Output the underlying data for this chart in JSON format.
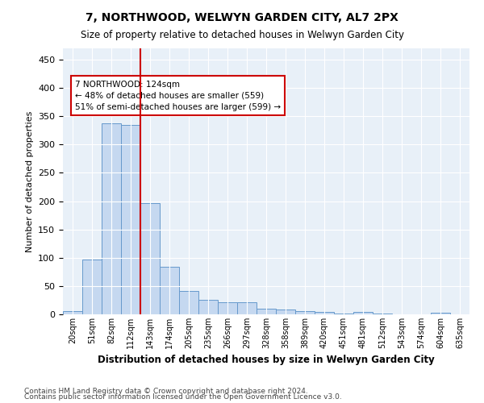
{
  "title": "7, NORTHWOOD, WELWYN GARDEN CITY, AL7 2PX",
  "subtitle": "Size of property relative to detached houses in Welwyn Garden City",
  "xlabel": "Distribution of detached houses by size in Welwyn Garden City",
  "ylabel": "Number of detached properties",
  "bar_labels": [
    "20sqm",
    "51sqm",
    "82sqm",
    "112sqm",
    "143sqm",
    "174sqm",
    "205sqm",
    "235sqm",
    "266sqm",
    "297sqm",
    "328sqm",
    "358sqm",
    "389sqm",
    "420sqm",
    "451sqm",
    "481sqm",
    "512sqm",
    "543sqm",
    "574sqm",
    "604sqm",
    "635sqm"
  ],
  "bar_values": [
    5,
    97,
    338,
    335,
    197,
    84,
    42,
    25,
    22,
    21,
    10,
    8,
    5,
    4,
    2,
    4,
    1,
    0,
    0,
    3,
    0
  ],
  "bar_color": "#c5d8f0",
  "bar_edge_color": "#6699cc",
  "vline_color": "#cc0000",
  "annotation_line1": "7 NORTHWOOD: 124sqm",
  "annotation_line2": "← 48% of detached houses are smaller (559)",
  "annotation_line3": "51% of semi-detached houses are larger (599) →",
  "annotation_box_color": "#ffffff",
  "annotation_box_edgecolor": "#cc0000",
  "ylim": [
    0,
    470
  ],
  "yticks": [
    0,
    50,
    100,
    150,
    200,
    250,
    300,
    350,
    400,
    450
  ],
  "footnote1": "Contains HM Land Registry data © Crown copyright and database right 2024.",
  "footnote2": "Contains public sector information licensed under the Open Government Licence v3.0.",
  "background_color": "#e8f0f8",
  "title_fontsize": 10,
  "subtitle_fontsize": 8.5
}
